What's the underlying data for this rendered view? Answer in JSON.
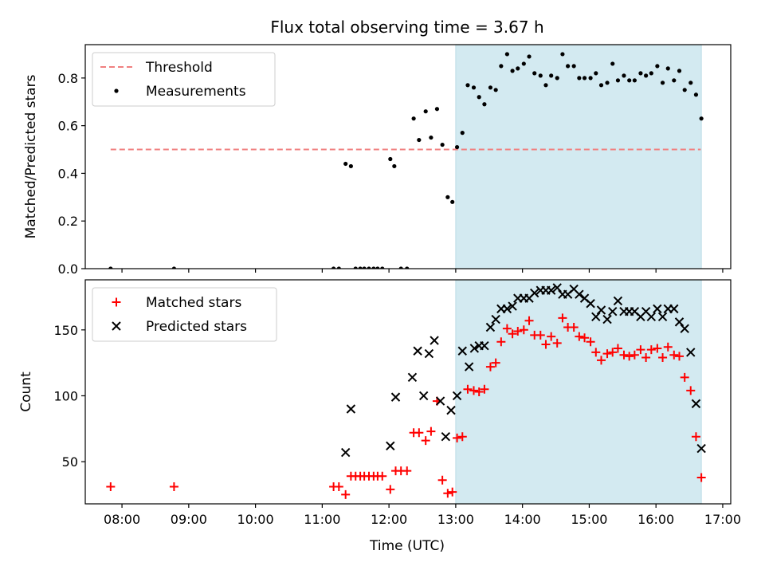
{
  "chart_data": [
    {
      "type": "scatter",
      "title": "Flux total observing time = 3.67 h",
      "xlabel": "",
      "ylabel": "Matched/Predicted stars",
      "xlim": [
        7.45,
        17.12
      ],
      "ylim": [
        0.0,
        0.94
      ],
      "yticks": [
        0.0,
        0.2,
        0.4,
        0.6,
        0.8
      ],
      "ytick_labels": [
        "0.0",
        "0.2",
        "0.4",
        "0.6",
        "0.8"
      ],
      "shaded_span": {
        "from": 13.0,
        "to": 16.68,
        "color": "#d3eaf1"
      },
      "legend_position": "upper-left",
      "series": [
        {
          "name": "Threshold",
          "kind": "dashed-line",
          "color": "#f08080",
          "x": [
            7.83,
            16.67
          ],
          "y": [
            0.5,
            0.5
          ]
        },
        {
          "name": "Measurements",
          "kind": "dot",
          "color": "#000000",
          "x": [
            7.83,
            8.78,
            11.17,
            11.25,
            11.35,
            11.43,
            11.5,
            11.57,
            11.63,
            11.7,
            11.77,
            11.83,
            11.9,
            12.02,
            12.08,
            12.18,
            12.27,
            12.37,
            12.45,
            12.55,
            12.63,
            12.72,
            12.8,
            12.88,
            12.95,
            13.02,
            13.1,
            13.18,
            13.27,
            13.35,
            13.43,
            13.52,
            13.6,
            13.68,
            13.77,
            13.85,
            13.93,
            14.02,
            14.1,
            14.18,
            14.27,
            14.35,
            14.43,
            14.52,
            14.6,
            14.68,
            14.77,
            14.85,
            14.93,
            15.02,
            15.1,
            15.18,
            15.27,
            15.35,
            15.43,
            15.52,
            15.6,
            15.68,
            15.77,
            15.85,
            15.93,
            16.02,
            16.1,
            16.18,
            16.27,
            16.35,
            16.43,
            16.52,
            16.6,
            16.68
          ],
          "y": [
            0.0,
            0.0,
            0.0,
            0.0,
            0.44,
            0.43,
            0.0,
            0.0,
            0.0,
            0.0,
            0.0,
            0.0,
            0.0,
            0.46,
            0.43,
            0.0,
            0.0,
            0.63,
            0.54,
            0.66,
            0.55,
            0.67,
            0.52,
            0.3,
            0.28,
            0.51,
            0.57,
            0.77,
            0.76,
            0.72,
            0.69,
            0.76,
            0.75,
            0.85,
            0.9,
            0.83,
            0.84,
            0.86,
            0.89,
            0.82,
            0.81,
            0.77,
            0.81,
            0.8,
            0.9,
            0.85,
            0.85,
            0.8,
            0.8,
            0.8,
            0.82,
            0.77,
            0.78,
            0.86,
            0.79,
            0.81,
            0.79,
            0.79,
            0.82,
            0.81,
            0.82,
            0.85,
            0.78,
            0.84,
            0.79,
            0.83,
            0.75,
            0.78,
            0.73,
            0.63
          ]
        }
      ]
    },
    {
      "type": "scatter",
      "title": "",
      "xlabel": "Time (UTC)",
      "ylabel": "Count",
      "xlim": [
        7.45,
        17.12
      ],
      "ylim": [
        18,
        188
      ],
      "yticks": [
        50,
        100,
        150
      ],
      "ytick_labels": [
        "50",
        "100",
        "150"
      ],
      "xticks": [
        8,
        9,
        10,
        11,
        12,
        13,
        14,
        15,
        16,
        17
      ],
      "xtick_labels": [
        "08:00",
        "09:00",
        "10:00",
        "11:00",
        "12:00",
        "13:00",
        "14:00",
        "15:00",
        "16:00",
        "17:00"
      ],
      "shaded_span": {
        "from": 13.0,
        "to": 16.68,
        "color": "#d3eaf1"
      },
      "legend_position": "upper-left",
      "series": [
        {
          "name": "Matched stars",
          "kind": "plus",
          "color": "#ff0000",
          "x": [
            7.83,
            8.78,
            11.17,
            11.25,
            11.35,
            11.43,
            11.5,
            11.57,
            11.63,
            11.7,
            11.77,
            11.83,
            11.9,
            12.02,
            12.1,
            12.18,
            12.27,
            12.37,
            12.45,
            12.55,
            12.63,
            12.72,
            12.8,
            12.88,
            12.95,
            13.02,
            13.1,
            13.18,
            13.27,
            13.35,
            13.43,
            13.52,
            13.6,
            13.68,
            13.77,
            13.85,
            13.93,
            14.02,
            14.1,
            14.18,
            14.27,
            14.35,
            14.43,
            14.52,
            14.6,
            14.68,
            14.77,
            14.85,
            14.93,
            15.02,
            15.1,
            15.18,
            15.27,
            15.35,
            15.43,
            15.52,
            15.6,
            15.68,
            15.77,
            15.85,
            15.93,
            16.02,
            16.1,
            16.18,
            16.27,
            16.35,
            16.43,
            16.52,
            16.6,
            16.68
          ],
          "y": [
            31,
            31,
            31,
            31,
            25,
            39,
            39,
            39,
            39,
            39,
            39,
            39,
            39,
            29,
            43,
            43,
            43,
            72,
            72,
            66,
            73,
            96,
            36,
            26,
            27,
            68,
            69,
            105,
            104,
            103,
            105,
            122,
            125,
            141,
            151,
            147,
            149,
            150,
            157,
            146,
            146,
            139,
            145,
            140,
            159,
            152,
            152,
            145,
            144,
            141,
            133,
            127,
            132,
            133,
            136,
            131,
            130,
            131,
            135,
            129,
            135,
            136,
            129,
            137,
            131,
            130,
            114,
            104,
            69,
            38
          ]
        },
        {
          "name": "Predicted stars",
          "kind": "cross",
          "color": "#000000",
          "x": [
            11.35,
            11.43,
            12.02,
            12.1,
            12.35,
            12.43,
            12.52,
            12.6,
            12.68,
            12.77,
            12.85,
            12.93,
            13.02,
            13.1,
            13.2,
            13.28,
            13.35,
            13.43,
            13.52,
            13.6,
            13.68,
            13.77,
            13.85,
            13.93,
            14.02,
            14.1,
            14.18,
            14.27,
            14.35,
            14.43,
            14.52,
            14.6,
            14.68,
            14.77,
            14.85,
            14.93,
            15.02,
            15.1,
            15.18,
            15.27,
            15.35,
            15.43,
            15.52,
            15.6,
            15.68,
            15.77,
            15.85,
            15.93,
            16.02,
            16.1,
            16.18,
            16.27,
            16.35,
            16.43,
            16.52,
            16.6,
            16.68
          ],
          "y": [
            57,
            90,
            62,
            99,
            114,
            134,
            100,
            132,
            142,
            96,
            69,
            89,
            100,
            134,
            122,
            136,
            138,
            138,
            152,
            158,
            166,
            166,
            168,
            174,
            174,
            174,
            178,
            180,
            180,
            180,
            182,
            177,
            177,
            181,
            177,
            174,
            170,
            160,
            165,
            158,
            164,
            172,
            164,
            164,
            164,
            160,
            164,
            160,
            166,
            160,
            166,
            166,
            156,
            151,
            133,
            94,
            60
          ]
        }
      ]
    }
  ]
}
